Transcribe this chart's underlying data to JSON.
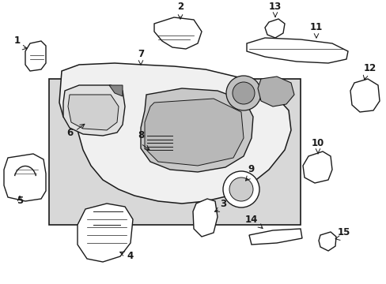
{
  "bg_color": "#ffffff",
  "line_color": "#1a1a1a",
  "label_color": "#000000",
  "panel_fill": "#d8d8d8",
  "part_fill": "#ffffff",
  "fig_width": 4.89,
  "fig_height": 3.6,
  "dpi": 100
}
